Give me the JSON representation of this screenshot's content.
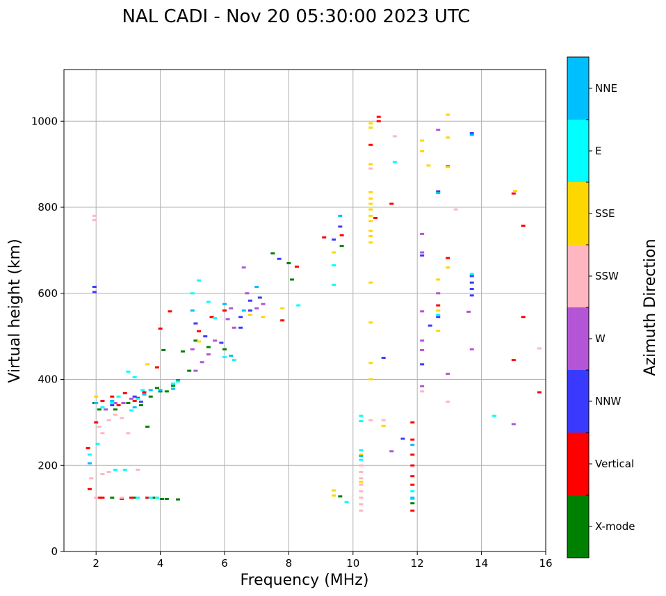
{
  "chart_data": {
    "type": "scatter",
    "title": "NAL CADI - Nov 20 05:30:00 2023 UTC",
    "xlabel": "Frequency (MHz)",
    "ylabel": "Virtual height (km)",
    "xlim": [
      1,
      16
    ],
    "ylim": [
      0,
      1120
    ],
    "x_ticks": [
      2,
      4,
      6,
      8,
      10,
      12,
      14,
      16
    ],
    "y_ticks": [
      0,
      200,
      400,
      600,
      800,
      1000
    ],
    "grid": true,
    "colorbar": {
      "title": "Azimuth Direction",
      "categories": [
        "X-mode",
        "Vertical",
        "NNW",
        "W",
        "SSW",
        "SSE",
        "E",
        "NNE"
      ],
      "colors": [
        "#008000",
        "#ff0000",
        "#3a3aff",
        "#b455d6",
        "#ffb6c1",
        "#ffd700",
        "#00ffff",
        "#00bfff"
      ]
    },
    "series": [
      {
        "name": "X-mode",
        "points": [
          [
            1.95,
            345
          ],
          [
            2.1,
            330
          ],
          [
            2.6,
            330
          ],
          [
            3.0,
            345
          ],
          [
            3.4,
            340
          ],
          [
            3.6,
            290
          ],
          [
            3.7,
            360
          ],
          [
            3.9,
            380
          ],
          [
            4.0,
            372
          ],
          [
            4.1,
            468
          ],
          [
            4.2,
            372
          ],
          [
            4.4,
            385
          ],
          [
            4.55,
            398
          ],
          [
            4.7,
            465
          ],
          [
            4.9,
            420
          ],
          [
            5.1,
            490
          ],
          [
            5.5,
            475
          ],
          [
            6.0,
            470
          ],
          [
            7.5,
            693
          ],
          [
            8.0,
            670
          ],
          [
            8.1,
            632
          ],
          [
            2.5,
            125
          ],
          [
            3.2,
            125
          ],
          [
            3.8,
            125
          ],
          [
            4.05,
            122
          ],
          [
            4.2,
            122
          ],
          [
            4.55,
            121
          ],
          [
            9.6,
            128
          ],
          [
            9.65,
            710
          ],
          [
            11.85,
            112
          ]
        ]
      },
      {
        "name": "Vertical",
        "points": [
          [
            1.75,
            240
          ],
          [
            1.8,
            145
          ],
          [
            2.0,
            300
          ],
          [
            2.2,
            350
          ],
          [
            2.5,
            360
          ],
          [
            2.7,
            340
          ],
          [
            2.9,
            368
          ],
          [
            3.2,
            350
          ],
          [
            3.3,
            357
          ],
          [
            3.5,
            370
          ],
          [
            3.9,
            428
          ],
          [
            4.0,
            518
          ],
          [
            4.3,
            558
          ],
          [
            5.2,
            512
          ],
          [
            5.6,
            545
          ],
          [
            6.0,
            560
          ],
          [
            7.8,
            537
          ],
          [
            8.25,
            662
          ],
          [
            9.1,
            730
          ],
          [
            9.65,
            735
          ],
          [
            10.55,
            945
          ],
          [
            10.8,
            1010
          ],
          [
            10.8,
            1000
          ],
          [
            11.2,
            808
          ],
          [
            10.7,
            775
          ],
          [
            2.1,
            125
          ],
          [
            2.2,
            125
          ],
          [
            2.8,
            122
          ],
          [
            3.1,
            125
          ],
          [
            3.6,
            125
          ],
          [
            11.85,
            300
          ],
          [
            11.85,
            260
          ],
          [
            11.85,
            225
          ],
          [
            11.85,
            200
          ],
          [
            11.85,
            175
          ],
          [
            11.85,
            155
          ],
          [
            11.85,
            95
          ],
          [
            12.65,
            572
          ],
          [
            12.95,
            682
          ],
          [
            12.95,
            895
          ],
          [
            15.0,
            445
          ],
          [
            15.0,
            832
          ],
          [
            15.3,
            757
          ],
          [
            15.3,
            545
          ],
          [
            15.8,
            370
          ]
        ]
      },
      {
        "name": "NNW",
        "points": [
          [
            1.95,
            615
          ],
          [
            1.95,
            603
          ],
          [
            2.5,
            340
          ],
          [
            3.2,
            360
          ],
          [
            3.4,
            348
          ],
          [
            5.1,
            530
          ],
          [
            5.4,
            500
          ],
          [
            5.9,
            485
          ],
          [
            6.5,
            545
          ],
          [
            6.5,
            520
          ],
          [
            6.8,
            560
          ],
          [
            6.8,
            583
          ],
          [
            7.1,
            590
          ],
          [
            7.7,
            680
          ],
          [
            9.6,
            755
          ],
          [
            9.4,
            725
          ],
          [
            10.95,
            450
          ],
          [
            11.55,
            262
          ],
          [
            12.15,
            688
          ],
          [
            12.15,
            435
          ],
          [
            12.4,
            525
          ],
          [
            12.65,
            837
          ],
          [
            12.65,
            545
          ],
          [
            13.7,
            972
          ],
          [
            13.7,
            640
          ],
          [
            13.7,
            625
          ],
          [
            13.7,
            610
          ],
          [
            13.7,
            595
          ]
        ]
      },
      {
        "name": "W",
        "points": [
          [
            2.3,
            330
          ],
          [
            2.6,
            345
          ],
          [
            2.85,
            345
          ],
          [
            3.1,
            355
          ],
          [
            5.0,
            470
          ],
          [
            5.1,
            420
          ],
          [
            5.3,
            440
          ],
          [
            5.5,
            458
          ],
          [
            5.7,
            490
          ],
          [
            6.1,
            540
          ],
          [
            6.2,
            565
          ],
          [
            6.3,
            520
          ],
          [
            6.6,
            660
          ],
          [
            6.7,
            600
          ],
          [
            7.0,
            565
          ],
          [
            7.2,
            575
          ],
          [
            11.2,
            233
          ],
          [
            12.15,
            738
          ],
          [
            12.15,
            695
          ],
          [
            12.15,
            558
          ],
          [
            12.15,
            490
          ],
          [
            12.15,
            468
          ],
          [
            12.15,
            384
          ],
          [
            12.65,
            980
          ],
          [
            12.65,
            600
          ],
          [
            12.95,
            413
          ],
          [
            13.6,
            557
          ],
          [
            13.7,
            470
          ],
          [
            15.0,
            296
          ]
        ]
      },
      {
        "name": "SSW",
        "points": [
          [
            1.95,
            780
          ],
          [
            1.95,
            770
          ],
          [
            1.85,
            170
          ],
          [
            2.1,
            290
          ],
          [
            2.2,
            275
          ],
          [
            2.4,
            305
          ],
          [
            2.6,
            318
          ],
          [
            2.8,
            310
          ],
          [
            3.0,
            275
          ],
          [
            2.2,
            180
          ],
          [
            2.4,
            185
          ],
          [
            3.3,
            190
          ],
          [
            2.0,
            125
          ],
          [
            2.8,
            125
          ],
          [
            10.25,
            200
          ],
          [
            10.25,
            185
          ],
          [
            10.25,
            170
          ],
          [
            10.25,
            155
          ],
          [
            10.25,
            140
          ],
          [
            10.25,
            125
          ],
          [
            10.25,
            110
          ],
          [
            10.25,
            95
          ],
          [
            10.55,
            305
          ],
          [
            10.55,
            890
          ],
          [
            10.95,
            305
          ],
          [
            11.3,
            965
          ],
          [
            12.15,
            372
          ],
          [
            12.95,
            348
          ],
          [
            13.2,
            795
          ],
          [
            15.8,
            472
          ]
        ]
      },
      {
        "name": "SSE",
        "points": [
          [
            2.0,
            360
          ],
          [
            3.6,
            435
          ],
          [
            5.2,
            488
          ],
          [
            6.8,
            550
          ],
          [
            7.2,
            545
          ],
          [
            7.8,
            565
          ],
          [
            9.4,
            142
          ],
          [
            9.4,
            130
          ],
          [
            9.4,
            695
          ],
          [
            10.25,
            225
          ],
          [
            10.25,
            162
          ],
          [
            10.55,
            995
          ],
          [
            10.55,
            985
          ],
          [
            10.55,
            900
          ],
          [
            10.55,
            835
          ],
          [
            10.55,
            820
          ],
          [
            10.55,
            808
          ],
          [
            10.55,
            795
          ],
          [
            10.55,
            780
          ],
          [
            10.55,
            768
          ],
          [
            10.55,
            745
          ],
          [
            10.55,
            733
          ],
          [
            10.55,
            718
          ],
          [
            10.55,
            625
          ],
          [
            10.55,
            532
          ],
          [
            10.55,
            438
          ],
          [
            10.55,
            400
          ],
          [
            10.95,
            292
          ],
          [
            12.15,
            955
          ],
          [
            12.15,
            930
          ],
          [
            12.35,
            897
          ],
          [
            12.65,
            632
          ],
          [
            12.65,
            560
          ],
          [
            12.65,
            513
          ],
          [
            12.95,
            1015
          ],
          [
            12.95,
            962
          ],
          [
            12.95,
            893
          ],
          [
            12.95,
            660
          ],
          [
            15.05,
            838
          ]
        ]
      },
      {
        "name": "E",
        "points": [
          [
            1.8,
            225
          ],
          [
            2.05,
            250
          ],
          [
            2.2,
            335
          ],
          [
            2.5,
            345
          ],
          [
            2.7,
            360
          ],
          [
            3.2,
            405
          ],
          [
            3.0,
            418
          ],
          [
            3.1,
            328
          ],
          [
            3.3,
            355
          ],
          [
            3.45,
            375
          ],
          [
            4.4,
            390
          ],
          [
            4.55,
            395
          ],
          [
            5.0,
            600
          ],
          [
            5.2,
            630
          ],
          [
            5.5,
            580
          ],
          [
            5.7,
            542
          ],
          [
            6.0,
            452
          ],
          [
            6.3,
            445
          ],
          [
            2.6,
            190
          ],
          [
            2.9,
            190
          ],
          [
            3.3,
            125
          ],
          [
            3.7,
            125
          ],
          [
            3.9,
            125
          ],
          [
            8.3,
            572
          ],
          [
            9.4,
            665
          ],
          [
            9.4,
            620
          ],
          [
            9.8,
            115
          ],
          [
            10.25,
            315
          ],
          [
            10.25,
            303
          ],
          [
            10.25,
            235
          ],
          [
            10.25,
            213
          ],
          [
            11.3,
            905
          ],
          [
            11.85,
            140
          ],
          [
            11.85,
            122
          ],
          [
            12.65,
            550
          ],
          [
            13.7,
            645
          ],
          [
            14.4,
            315
          ]
        ]
      },
      {
        "name": "NNE",
        "points": [
          [
            1.8,
            205
          ],
          [
            2.0,
            345
          ],
          [
            2.5,
            350
          ],
          [
            3.2,
            335
          ],
          [
            3.5,
            365
          ],
          [
            3.7,
            375
          ],
          [
            4.0,
            375
          ],
          [
            4.4,
            378
          ],
          [
            5.0,
            560
          ],
          [
            6.0,
            575
          ],
          [
            6.2,
            455
          ],
          [
            6.6,
            560
          ],
          [
            7.0,
            615
          ],
          [
            9.6,
            780
          ],
          [
            10.25,
            222
          ],
          [
            11.85,
            248
          ],
          [
            11.85,
            125
          ],
          [
            12.65,
            833
          ],
          [
            13.7,
            968
          ]
        ]
      }
    ]
  }
}
